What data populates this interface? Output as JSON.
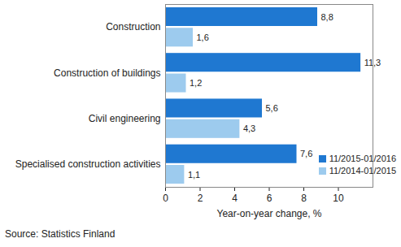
{
  "chart_data": {
    "type": "bar",
    "orientation": "horizontal",
    "categories": [
      "Construction",
      "Construction of buildings",
      "Civil engineering",
      "Specialised construction activities"
    ],
    "series": [
      {
        "name": "11/2015-01/2016",
        "color": "#1f78d1",
        "values": [
          8.8,
          11.3,
          5.6,
          7.6
        ],
        "value_labels": [
          "8,8",
          "11,3",
          "5,6",
          "7,6"
        ]
      },
      {
        "name": "11/2014-01/2015",
        "color": "#9dcbee",
        "values": [
          1.6,
          1.2,
          4.3,
          1.1
        ],
        "value_labels": [
          "1,6",
          "1,2",
          "4,3",
          "1,1"
        ]
      }
    ],
    "xlim": [
      0,
      12
    ],
    "xticks": [
      0,
      2,
      4,
      6,
      8,
      10
    ],
    "x_label": "Year-on-year change, %",
    "source": "Source: Statistics Finland",
    "data_labels": true,
    "legend": "lower right",
    "grid": false
  }
}
